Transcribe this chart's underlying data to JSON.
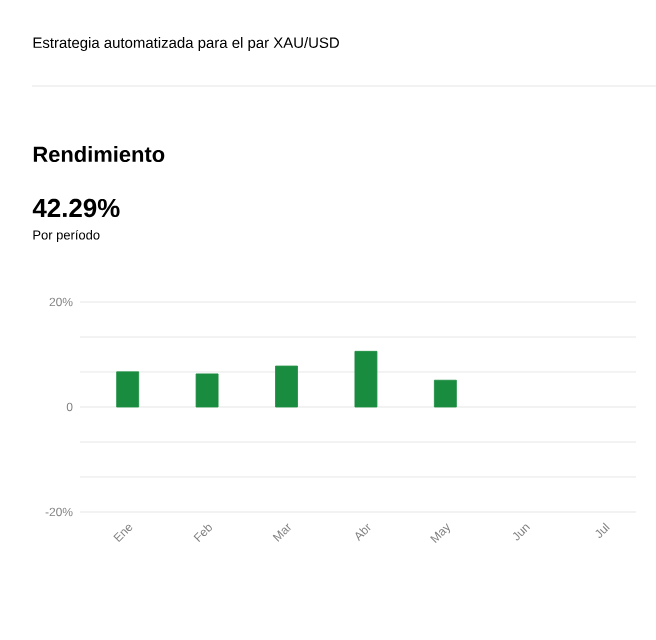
{
  "chart_data": {
    "type": "bar",
    "title": "Rendimiento",
    "subtitle": "Estrategia automatizada para el par XAU/USD",
    "annotations": [
      "42.29%",
      "Por período"
    ],
    "categories": [
      "Ene",
      "Feb",
      "Mar",
      "Abr",
      "May",
      "Jun",
      "Jul"
    ],
    "values": [
      6.7,
      6.3,
      7.8,
      10.6,
      5.1,
      null,
      null
    ],
    "color": "#1a8c3f",
    "ylim": [
      -20,
      20
    ],
    "yticks": [
      {
        "value": -20,
        "label": "-20%"
      },
      {
        "value": -13.33,
        "label": null
      },
      {
        "value": -6.67,
        "label": null
      },
      0,
      {
        "value": 6.67,
        "label": null
      },
      {
        "value": 13.33,
        "label": null
      },
      {
        "value": 20,
        "label": "20%"
      }
    ],
    "grid": "y"
  }
}
